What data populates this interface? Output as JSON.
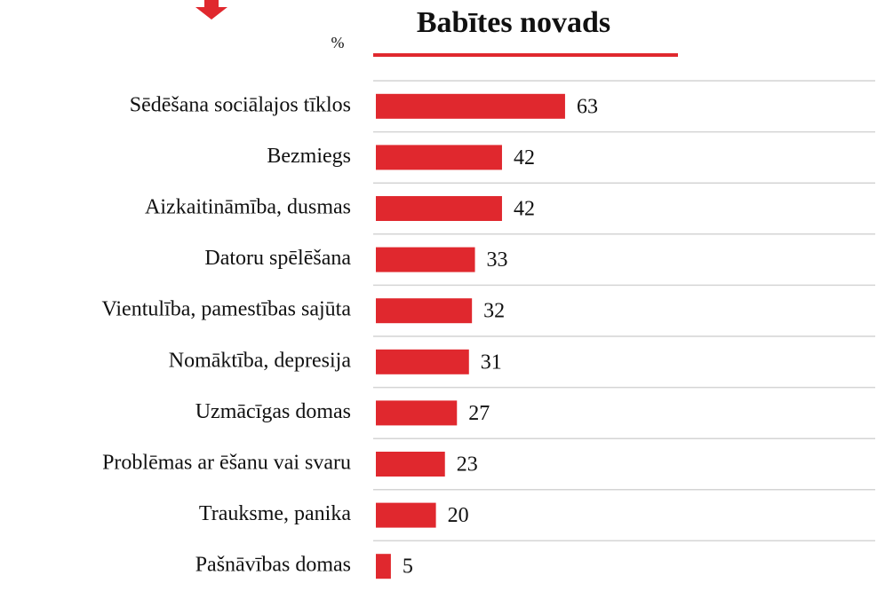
{
  "chart_data": {
    "type": "bar",
    "orientation": "horizontal",
    "title": "Babītes novads",
    "unit_label": "%",
    "categories": [
      "Sēdēšana sociālajos tīklos",
      "Bezmiegs",
      "Aizkaitināmība, dusmas",
      "Datoru spēlēšana",
      "Vientulība, pamestības sajūta",
      "Nomāktība, depresija",
      "Uzmācīgas domas",
      "Problēmas ar ēšanu vai svaru",
      "Trauksme, panika",
      "Pašnāvības domas"
    ],
    "values": [
      63,
      42,
      42,
      33,
      32,
      31,
      27,
      23,
      20,
      5
    ],
    "color": "#e0282e"
  }
}
